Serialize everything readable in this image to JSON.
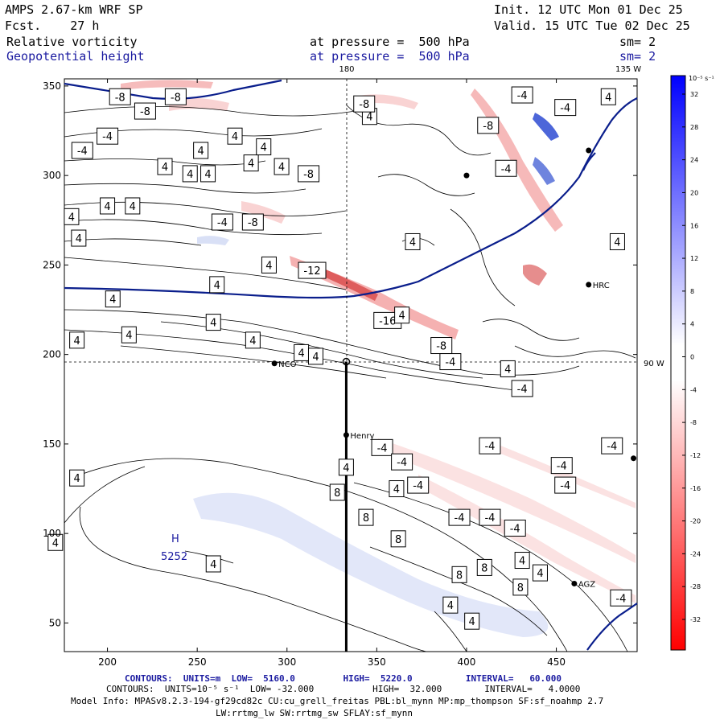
{
  "header": {
    "model": "AMPS 2.67-km WRF SP",
    "init": "Init. 12 UTC Mon 01 Dec 25",
    "fcst": "Fcst.    27 h",
    "valid": "Valid. 15 UTC Tue 02 Dec 25",
    "field1": "Relative vorticity",
    "field1_level": "at pressure =  500 hPa",
    "field1_sm": "sm= 2",
    "field2": "Geopotential height",
    "field2_level": "at pressure =  500 hPa",
    "field2_sm": "sm= 2"
  },
  "footer": {
    "contours1": "CONTOURS:  UNITS=m  LOW=  5160.0         HIGH=  5220.0          INTERVAL=   60.000",
    "contours2": "CONTOURS:  UNITS=10⁻⁵ s⁻¹  LOW= -32.000           HIGH=  32.000        INTERVAL=   4.0000",
    "model_info": "Model Info: MPASv8.2.3-194-gf29cd82c CU:cu_grell_freitas PBL:bl_mynn MP:mp_thompson SF:sf_noahmp 2.7",
    "model_info2": "LW:rrtmg_lw SW:rrtmg_sw SFLAY:sf_mynn"
  },
  "colorbar": {
    "unit": "10⁻⁵ s⁻¹",
    "ticks": [
      "32",
      "28",
      "24",
      "20",
      "16",
      "12",
      "8",
      "4",
      "0",
      "-4",
      "-8",
      "-12",
      "-16",
      "-20",
      "-24",
      "-28",
      "-32"
    ]
  },
  "map_labels": {
    "lon_180": "180",
    "lon_135w": "135 W",
    "lon_90w": "90 W",
    "high": "H",
    "high_value": "5252"
  },
  "stations": [
    {
      "name": "NCO",
      "x": 293,
      "y": 195
    },
    {
      "name": "Henry",
      "x": 333,
      "y": 155
    },
    {
      "name": "HRC",
      "x": 468,
      "y": 239
    },
    {
      "name": "AGZ",
      "x": 460,
      "y": 72
    },
    {
      "name": "",
      "x": 400,
      "y": 300
    },
    {
      "name": "",
      "x": 468,
      "y": 314
    },
    {
      "name": "",
      "x": 493,
      "y": 142
    }
  ],
  "chart_data": {
    "type": "heatmap",
    "title": "Relative vorticity / Geopotential height at 500 hPa",
    "xlabel": "",
    "ylabel": "",
    "xlim": [
      176,
      495
    ],
    "ylim": [
      34,
      354
    ],
    "xticks": [
      200,
      250,
      300,
      350,
      400,
      450
    ],
    "yticks": [
      50,
      100,
      150,
      200,
      250,
      300,
      350
    ],
    "cross_section": {
      "x": 333,
      "y_start": 34,
      "y_end": 196
    },
    "grid_lines": {
      "x": 333,
      "y": 196
    },
    "vorticity_labels": [
      {
        "v": "-8",
        "x": 207,
        "y": 344
      },
      {
        "v": "-8",
        "x": 221,
        "y": 336
      },
      {
        "v": "-8",
        "x": 238,
        "y": 344
      },
      {
        "v": "-4",
        "x": 200,
        "y": 322
      },
      {
        "v": "-4",
        "x": 186,
        "y": 314
      },
      {
        "v": "4",
        "x": 271,
        "y": 322
      },
      {
        "v": "4",
        "x": 252,
        "y": 314
      },
      {
        "v": "4",
        "x": 232,
        "y": 305
      },
      {
        "v": "4",
        "x": 246,
        "y": 301
      },
      {
        "v": "4",
        "x": 256,
        "y": 301
      },
      {
        "v": "4",
        "x": 280,
        "y": 307
      },
      {
        "v": "4",
        "x": 297,
        "y": 305
      },
      {
        "v": "4",
        "x": 287,
        "y": 316
      },
      {
        "v": "-8",
        "x": 312,
        "y": 301
      },
      {
        "v": "4",
        "x": 346,
        "y": 333
      },
      {
        "v": "-8",
        "x": 343,
        "y": 340
      },
      {
        "v": "4",
        "x": 180,
        "y": 277
      },
      {
        "v": "4",
        "x": 200,
        "y": 283
      },
      {
        "v": "4",
        "x": 214,
        "y": 283
      },
      {
        "v": "4",
        "x": 184,
        "y": 265
      },
      {
        "v": "-4",
        "x": 264,
        "y": 274
      },
      {
        "v": "-8",
        "x": 281,
        "y": 274
      },
      {
        "v": "4",
        "x": 290,
        "y": 250
      },
      {
        "v": "4",
        "x": 261,
        "y": 239
      },
      {
        "v": "4",
        "x": 203,
        "y": 231
      },
      {
        "v": "4",
        "x": 212,
        "y": 211
      },
      {
        "v": "4",
        "x": 183,
        "y": 208
      },
      {
        "v": "4",
        "x": 259,
        "y": 218
      },
      {
        "v": "4",
        "x": 281,
        "y": 208
      },
      {
        "v": "4",
        "x": 308,
        "y": 201
      },
      {
        "v": "4",
        "x": 316,
        "y": 199
      },
      {
        "v": "-12",
        "x": 314,
        "y": 247
      },
      {
        "v": "-16",
        "x": 356,
        "y": 219
      },
      {
        "v": "4",
        "x": 364,
        "y": 222
      },
      {
        "v": "-8",
        "x": 386,
        "y": 205
      },
      {
        "v": "-4",
        "x": 391,
        "y": 196
      },
      {
        "v": "4",
        "x": 370,
        "y": 263
      },
      {
        "v": "-4",
        "x": 431,
        "y": 345
      },
      {
        "v": "-4",
        "x": 455,
        "y": 338
      },
      {
        "v": "4",
        "x": 479,
        "y": 344
      },
      {
        "v": "-8",
        "x": 412,
        "y": 328
      },
      {
        "v": "-4",
        "x": 422,
        "y": 304
      },
      {
        "v": "4",
        "x": 484,
        "y": 263
      },
      {
        "v": "4",
        "x": 423,
        "y": 192
      },
      {
        "v": "-4",
        "x": 431,
        "y": 181
      },
      {
        "v": "-4",
        "x": 353,
        "y": 148
      },
      {
        "v": "-4",
        "x": 364,
        "y": 140
      },
      {
        "v": "-4",
        "x": 373,
        "y": 127
      },
      {
        "v": "-4",
        "x": 413,
        "y": 149
      },
      {
        "v": "-4",
        "x": 453,
        "y": 138
      },
      {
        "v": "-4",
        "x": 481,
        "y": 149
      },
      {
        "v": "-4",
        "x": 455,
        "y": 127
      },
      {
        "v": "-4",
        "x": 396,
        "y": 109
      },
      {
        "v": "-4",
        "x": 413,
        "y": 109
      },
      {
        "v": "-4",
        "x": 427,
        "y": 103
      },
      {
        "v": "4",
        "x": 333,
        "y": 137
      },
      {
        "v": "4",
        "x": 183,
        "y": 131
      },
      {
        "v": "4",
        "x": 171,
        "y": 95
      },
      {
        "v": "8",
        "x": 328,
        "y": 123
      },
      {
        "v": "8",
        "x": 344,
        "y": 109
      },
      {
        "v": "8",
        "x": 362,
        "y": 97
      },
      {
        "v": "4",
        "x": 361,
        "y": 125
      },
      {
        "v": "4",
        "x": 259,
        "y": 83
      },
      {
        "v": "8",
        "x": 396,
        "y": 77
      },
      {
        "v": "8",
        "x": 410,
        "y": 81
      },
      {
        "v": "8",
        "x": 430,
        "y": 70
      },
      {
        "v": "4",
        "x": 431,
        "y": 85
      },
      {
        "v": "4",
        "x": 441,
        "y": 78
      },
      {
        "v": "4",
        "x": 391,
        "y": 60
      },
      {
        "v": "4",
        "x": 403,
        "y": 51
      },
      {
        "v": "-4",
        "x": 486,
        "y": 64
      }
    ]
  }
}
